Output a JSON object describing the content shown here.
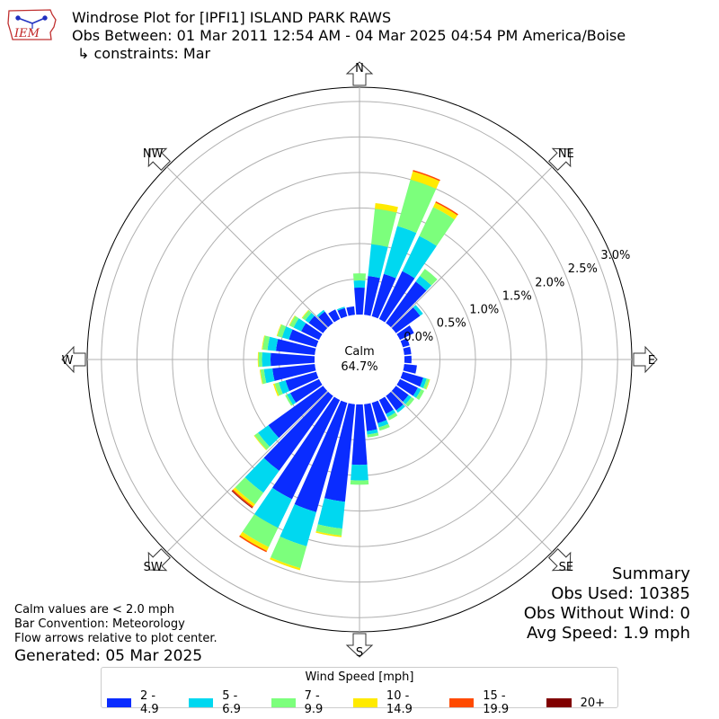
{
  "header": {
    "title": "Windrose Plot for [IPFI1] ISLAND PARK RAWS",
    "obs_between": "Obs Between: 01 Mar 2011 12:54 AM - 04 Mar 2025 04:54 PM America/Boise",
    "constraints": "↳ constraints: Mar"
  },
  "logo": {
    "text": "IEM",
    "icon": "iem-iowa-logo"
  },
  "summary": {
    "heading": "Summary",
    "obs_used": "Obs Used: 10385",
    "obs_without_wind": "Obs Without Wind: 0",
    "avg_speed": "Avg Speed: 1.9 mph"
  },
  "notes": {
    "calm_note": "Calm values are < 2.0 mph",
    "bar_convention": "Bar Convention: Meteorology",
    "flow_arrows": "Flow arrows relative to plot center.",
    "generated": "Generated: 05 Mar 2025"
  },
  "chart_data": {
    "type": "windrose",
    "calm_label": "Calm",
    "calm_value": "64.7%",
    "calm_percent": 64.7,
    "compass_labels": [
      "N",
      "NE",
      "E",
      "SE",
      "S",
      "SW",
      "W",
      "NW"
    ],
    "radial_ticks": [
      "0.0%",
      "0.5%",
      "1.0%",
      "1.5%",
      "2.0%",
      "2.5%",
      "3.0%"
    ],
    "rmax": 3.2,
    "legend_title": "Wind Speed [mph]",
    "bins": [
      {
        "label": "2 - 4.9",
        "color": "#0a2cff"
      },
      {
        "label": "5 - 6.9",
        "color": "#00d8f0"
      },
      {
        "label": "7 - 9.9",
        "color": "#7cff7c"
      },
      {
        "label": "10 - 14.9",
        "color": "#ffea00"
      },
      {
        "label": "15 - 19.9",
        "color": "#ff4a00"
      },
      {
        "label": "20+",
        "color": "#800000"
      }
    ],
    "sectors": [
      {
        "dir": 0,
        "values": [
          0.38,
          0.1,
          0.1,
          0.0,
          0.0,
          0.0
        ]
      },
      {
        "dir": 10,
        "values": [
          0.55,
          0.45,
          0.5,
          0.08,
          0.0,
          0.0
        ]
      },
      {
        "dir": 20,
        "values": [
          0.62,
          0.7,
          0.68,
          0.12,
          0.02,
          0.0
        ]
      },
      {
        "dir": 30,
        "values": [
          0.75,
          0.55,
          0.45,
          0.07,
          0.02,
          0.0
        ]
      },
      {
        "dir": 40,
        "values": [
          0.72,
          0.1,
          0.12,
          0.0,
          0.0,
          0.0
        ]
      },
      {
        "dir": 50,
        "values": [
          0.42,
          0.05,
          0.0,
          0.0,
          0.0,
          0.0
        ]
      },
      {
        "dir": 60,
        "values": [
          0.22,
          0.0,
          0.0,
          0.0,
          0.0,
          0.0
        ]
      },
      {
        "dir": 70,
        "values": [
          0.1,
          0.0,
          0.0,
          0.0,
          0.0,
          0.0
        ]
      },
      {
        "dir": 80,
        "values": [
          0.1,
          0.0,
          0.0,
          0.0,
          0.0,
          0.0
        ]
      },
      {
        "dir": 90,
        "values": [
          0.1,
          0.0,
          0.0,
          0.0,
          0.0,
          0.0
        ]
      },
      {
        "dir": 100,
        "values": [
          0.18,
          0.0,
          0.0,
          0.0,
          0.0,
          0.0
        ]
      },
      {
        "dir": 110,
        "values": [
          0.3,
          0.05,
          0.04,
          0.01,
          0.0,
          0.0
        ]
      },
      {
        "dir": 120,
        "values": [
          0.28,
          0.05,
          0.05,
          0.0,
          0.0,
          0.0
        ]
      },
      {
        "dir": 130,
        "values": [
          0.22,
          0.05,
          0.05,
          0.0,
          0.0,
          0.0
        ]
      },
      {
        "dir": 140,
        "values": [
          0.25,
          0.04,
          0.0,
          0.0,
          0.0,
          0.0
        ]
      },
      {
        "dir": 150,
        "values": [
          0.22,
          0.05,
          0.05,
          0.0,
          0.0,
          0.0
        ]
      },
      {
        "dir": 160,
        "values": [
          0.3,
          0.06,
          0.05,
          0.0,
          0.0,
          0.0
        ]
      },
      {
        "dir": 170,
        "values": [
          0.38,
          0.05,
          0.04,
          0.0,
          0.0,
          0.0
        ]
      },
      {
        "dir": 180,
        "values": [
          0.85,
          0.22,
          0.06,
          0.0,
          0.0,
          0.0
        ]
      },
      {
        "dir": 190,
        "values": [
          1.38,
          0.38,
          0.1,
          0.02,
          0.0,
          0.0
        ]
      },
      {
        "dir": 200,
        "values": [
          1.6,
          0.5,
          0.32,
          0.03,
          0.0,
          0.0
        ]
      },
      {
        "dir": 210,
        "values": [
          1.55,
          0.45,
          0.3,
          0.06,
          0.02,
          0.0
        ]
      },
      {
        "dir": 220,
        "values": [
          1.3,
          0.38,
          0.2,
          0.04,
          0.02,
          0.01
        ]
      },
      {
        "dir": 230,
        "values": [
          0.95,
          0.18,
          0.06,
          0.01,
          0.0,
          0.0
        ]
      },
      {
        "dir": 240,
        "values": [
          0.45,
          0.05,
          0.03,
          0.0,
          0.0,
          0.0
        ]
      },
      {
        "dir": 250,
        "values": [
          0.45,
          0.1,
          0.06,
          0.02,
          0.0,
          0.0
        ]
      },
      {
        "dir": 260,
        "values": [
          0.6,
          0.12,
          0.05,
          0.01,
          0.0,
          0.0
        ]
      },
      {
        "dir": 270,
        "values": [
          0.62,
          0.12,
          0.05,
          0.01,
          0.0,
          0.0
        ]
      },
      {
        "dir": 280,
        "values": [
          0.55,
          0.12,
          0.07,
          0.01,
          0.0,
          0.0
        ]
      },
      {
        "dir": 290,
        "values": [
          0.4,
          0.1,
          0.07,
          0.01,
          0.0,
          0.0
        ]
      },
      {
        "dir": 300,
        "values": [
          0.28,
          0.12,
          0.06,
          0.01,
          0.0,
          0.0
        ]
      },
      {
        "dir": 310,
        "values": [
          0.25,
          0.06,
          0.05,
          0.01,
          0.0,
          0.0
        ]
      },
      {
        "dir": 320,
        "values": [
          0.2,
          0.03,
          0.0,
          0.0,
          0.0,
          0.0
        ]
      },
      {
        "dir": 330,
        "values": [
          0.15,
          0.0,
          0.0,
          0.0,
          0.0,
          0.0
        ]
      },
      {
        "dir": 340,
        "values": [
          0.12,
          0.02,
          0.0,
          0.0,
          0.0,
          0.0
        ]
      },
      {
        "dir": 350,
        "values": [
          0.12,
          0.0,
          0.0,
          0.0,
          0.0,
          0.0
        ]
      }
    ]
  }
}
